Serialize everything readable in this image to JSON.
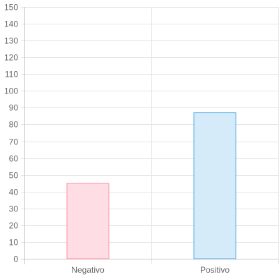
{
  "chart_data": {
    "type": "bar",
    "categories": [
      "Negativo",
      "Positivo"
    ],
    "values": [
      45,
      87
    ],
    "ylim": [
      0,
      150
    ],
    "ytick_step": 10,
    "yticks": [
      "0",
      "10",
      "20",
      "30",
      "40",
      "50",
      "60",
      "70",
      "80",
      "90",
      "100",
      "110",
      "120",
      "130",
      "140",
      "150"
    ],
    "grid": true,
    "bar_colors": [
      {
        "fill": "#ffdde4",
        "stroke": "#ff8ea5"
      },
      {
        "fill": "#d6ebf9",
        "stroke": "#5aaee3"
      }
    ],
    "title": "",
    "xlabel": "",
    "ylabel": ""
  }
}
